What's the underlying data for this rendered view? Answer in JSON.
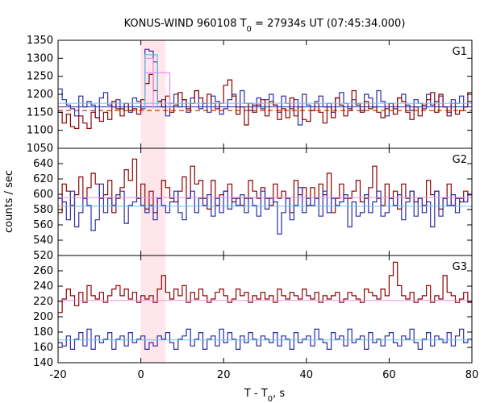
{
  "chart_data": {
    "type": "line",
    "title": {
      "prefix": "KONUS-WIND 960108 T",
      "prefix_sub": "0",
      "suffix": " = 27934s UT (07:45:34.000)"
    },
    "xlabel": {
      "prefix": "T - T",
      "sub": "0",
      "suffix": ", s"
    },
    "ylabel": "counts / sec",
    "xlim": [
      -20,
      80
    ],
    "xticks": [
      "-20",
      "0",
      "20",
      "40",
      "60",
      "80"
    ],
    "highlight_interval": [
      0,
      6
    ],
    "colors": {
      "high_res": "#2a2aa8",
      "low_res": "#8b0000",
      "high_res_background": "#6cc4e8",
      "low_res_background": "#e890e8",
      "burst_bin": "#ee82ee",
      "burst_fine": "#5bc0de",
      "dashed_background": "#c00000",
      "highlight": "#ffe6ea"
    },
    "panels": [
      {
        "label": "G1",
        "ylim": [
          1050,
          1350
        ],
        "yticks": [
          "1050",
          "1100",
          "1150",
          "1200",
          "1250",
          "1300",
          "1350"
        ],
        "series": [
          {
            "kind": "high_res",
            "bin_width": 1,
            "x_start": -20,
            "values": [
              1215,
              1185,
              1170,
              1160,
              1140,
              1195,
              1165,
              1180,
              1170,
              1135,
              1190,
              1205,
              1170,
              1165,
              1185,
              1160,
              1175,
              1150,
              1190,
              1180,
              1160,
              1325,
              1320,
              1290,
              1180,
              1185,
              1140,
              1175,
              1200,
              1165,
              1185,
              1150,
              1190,
              1210,
              1160,
              1175,
              1150,
              1195,
              1180,
              1145,
              1160,
              1185,
              1200,
              1165,
              1210,
              1175,
              1155,
              1170,
              1190,
              1160,
              1185,
              1200,
              1170,
              1150,
              1195,
              1175,
              1160,
              1185,
              1115,
              1200,
              1170,
              1155,
              1180,
              1195,
              1165,
              1175,
              1150,
              1190,
              1205,
              1175,
              1160,
              1185,
              1170,
              1155,
              1200,
              1190,
              1165,
              1210,
              1180,
              1140,
              1175,
              1160,
              1190,
              1200,
              1170,
              1155,
              1185,
              1175,
              1160,
              1200,
              1170,
              1180,
              1195,
              1165,
              1150,
              1185,
              1175,
              1195,
              1165,
              1180
            ]
          },
          {
            "kind": "low_res",
            "bin_width": 1,
            "x_start": -20,
            "values": [
              1150,
              1120,
              1145,
              1110,
              1105,
              1140,
              1120,
              1105,
              1150,
              1135,
              1125,
              1150,
              1130,
              1180,
              1160,
              1140,
              1175,
              1155,
              1160,
              1145,
              1185,
              1230,
              1255,
              1210,
              1180,
              1165,
              1195,
              1150,
              1170,
              1205,
              1185,
              1160,
              1175,
              1210,
              1190,
              1175,
              1200,
              1175,
              1160,
              1175,
              1225,
              1240,
              1195,
              1145,
              1165,
              1115,
              1175,
              1150,
              1170,
              1185,
              1140,
              1180,
              1170,
              1130,
              1160,
              1135,
              1190,
              1140,
              1165,
              1130,
              1125,
              1155,
              1175,
              1150,
              1120,
              1165,
              1135,
              1190,
              1170,
              1140,
              1155,
              1210,
              1175,
              1150,
              1180,
              1160,
              1165,
              1150,
              1135,
              1160,
              1175,
              1145,
              1190,
              1180,
              1150,
              1130,
              1165,
              1140,
              1170,
              1185,
              1205,
              1150,
              1200,
              1165,
              1140,
              1175,
              1145,
              1155,
              1165,
              1205
            ]
          },
          {
            "kind": "background_solid",
            "value": 1175
          },
          {
            "kind": "background_solid_2",
            "value": 1165
          },
          {
            "kind": "background_dashed",
            "value": 1155
          },
          {
            "kind": "burst_bin",
            "x_from": 1,
            "x_to": 7,
            "value": 1260
          },
          {
            "kind": "burst_bin",
            "x_from": 1,
            "x_to": 3,
            "value": 1300
          },
          {
            "kind": "burst_fine",
            "x_from": 1,
            "x_to": 4,
            "value": 1310
          }
        ]
      },
      {
        "label": "G2",
        "ylim": [
          520,
          670
        ],
        "yticks": [
          "520",
          "540",
          "560",
          "580",
          "600",
          "620",
          "640",
          "660"
        ],
        "series": [
          {
            "kind": "low_res",
            "bin_width": 1,
            "x_start": -20,
            "values": [
              580,
              620,
              610,
              590,
              605,
              630,
              600,
              615,
              635,
              620,
              600,
              605,
              625,
              580,
              600,
              615,
              640,
              625,
              655,
              600,
              620,
              585,
              610,
              580,
              600,
              625,
              615,
              600,
              595,
              610,
              630,
              600,
              645,
              620,
              625,
              600,
              585,
              625,
              590,
              605,
              610,
              620,
              595,
              600,
              590,
              600,
              625,
              610,
              600,
              615,
              600,
              590,
              620,
              600,
              610,
              600,
              580,
              625,
              605,
              615,
              590,
              615,
              600,
              620,
              605,
              635,
              580,
              600,
              620,
              600,
              600,
              610,
              625,
              595,
              600,
              615,
              645,
              600,
              590,
              620,
              600,
              610,
              585,
              620,
              600,
              610,
              595,
              600,
              590,
              625,
              605,
              610,
              585,
              600,
              620,
              590,
              600,
              595,
              610,
              605
            ]
          },
          {
            "kind": "high_res",
            "bin_width": 1,
            "x_start": -20,
            "values": [
              600,
              595,
              570,
              610,
              560,
              580,
              600,
              590,
              555,
              570,
              620,
              580,
              600,
              590,
              605,
              610,
              565,
              590,
              595,
              600,
              590,
              580,
              590,
              570,
              600,
              590,
              580,
              595,
              610,
              580,
              570,
              600,
              610,
              580,
              600,
              590,
              605,
              575,
              600,
              580,
              610,
              585,
              600,
              590,
              605,
              580,
              600,
              590,
              575,
              610,
              585,
              600,
              595,
              550,
              580,
              600,
              570,
              590,
              615,
              580,
              600,
              590,
              600,
              575,
              610,
              580,
              600,
              590,
              595,
              605,
              560,
              595,
              575,
              580,
              605,
              580,
              595,
              610,
              575,
              580,
              600,
              590,
              605,
              570,
              595,
              610,
              575,
              600,
              580,
              595,
              560,
              610,
              575,
              600,
              590,
              605,
              580,
              600,
              595,
              605
            ]
          },
          {
            "kind": "background_low",
            "value": 601
          },
          {
            "kind": "background_high",
            "value": 589
          }
        ]
      },
      {
        "label": "G3",
        "ylim": [
          140,
          300
        ],
        "yticks": [
          "140",
          "160",
          "180",
          "200",
          "220",
          "240",
          "260",
          "280"
        ],
        "series": [
          {
            "kind": "low_res",
            "bin_width": 1,
            "x_start": -20,
            "values": [
              215,
              235,
              250,
              240,
              225,
              245,
              230,
              255,
              240,
              235,
              245,
              230,
              240,
              250,
              255,
              240,
              250,
              235,
              245,
              230,
              240,
              235,
              240,
              230,
              250,
              270,
              245,
              235,
              250,
              240,
              255,
              230,
              245,
              235,
              250,
              240,
              230,
              235,
              245,
              250,
              240,
              230,
              235,
              250,
              240,
              245,
              230,
              240,
              235,
              245,
              235,
              240,
              230,
              250,
              240,
              235,
              245,
              240,
              235,
              250,
              240,
              235,
              245,
              230,
              240,
              235,
              240,
              245,
              230,
              235,
              245,
              240,
              235,
              230,
              250,
              245,
              240,
              235,
              250,
              240,
              270,
              290,
              255,
              240,
              235,
              245,
              230,
              235,
              240,
              255,
              230,
              240,
              235,
              270,
              245,
              240,
              230,
              235,
              245,
              230
            ]
          },
          {
            "kind": "high_res",
            "bin_width": 1,
            "x_start": -20,
            "values": [
              170,
              165,
              180,
              160,
              175,
              185,
              165,
              190,
              160,
              180,
              170,
              175,
              185,
              160,
              175,
              180,
              165,
              185,
              170,
              175,
              180,
              160,
              170,
              165,
              180,
              175,
              185,
              170,
              160,
              175,
              180,
              190,
              165,
              175,
              185,
              160,
              175,
              180,
              165,
              190,
              170,
              185,
              175,
              160,
              180,
              170,
              185,
              175,
              165,
              180,
              175,
              170,
              185,
              165,
              180,
              175,
              160,
              185,
              170,
              175,
              180,
              165,
              190,
              175,
              170,
              160,
              185,
              175,
              180,
              165,
              190,
              170,
              175,
              180,
              160,
              185,
              170,
              175,
              165,
              180,
              185,
              170,
              165,
              180,
              175,
              190,
              170,
              160,
              175,
              185,
              165,
              180,
              175,
              170,
              185,
              165,
              180,
              190,
              170,
              175
            ]
          },
          {
            "kind": "background_low",
            "value": 233
          },
          {
            "kind": "background_high",
            "value": 174
          }
        ]
      }
    ]
  }
}
